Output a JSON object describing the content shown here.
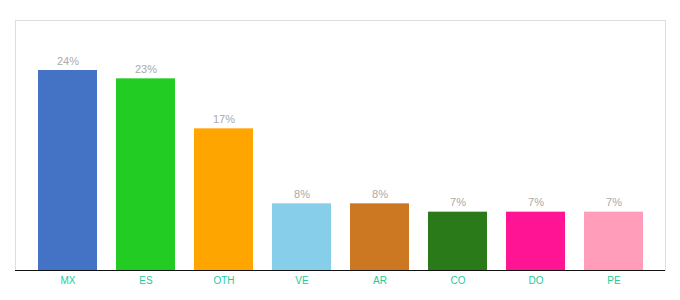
{
  "chart_data": {
    "type": "bar",
    "categories": [
      "MX",
      "ES",
      "OTH",
      "VE",
      "AR",
      "CO",
      "DO",
      "PE"
    ],
    "values": [
      24,
      23,
      17,
      8,
      8,
      7,
      7,
      7
    ],
    "value_labels": [
      "24%",
      "23%",
      "17%",
      "8%",
      "8%",
      "7%",
      "7%",
      "7%"
    ],
    "colors": [
      "#4472c4",
      "#22cc22",
      "#ffa500",
      "#87ceeb",
      "#cc7722",
      "#2a7a1a",
      "#ff1493",
      "#ff9dbb"
    ],
    "ylim": [
      0,
      30
    ],
    "data_labels": true,
    "tick_labels": "x",
    "grid": false
  }
}
